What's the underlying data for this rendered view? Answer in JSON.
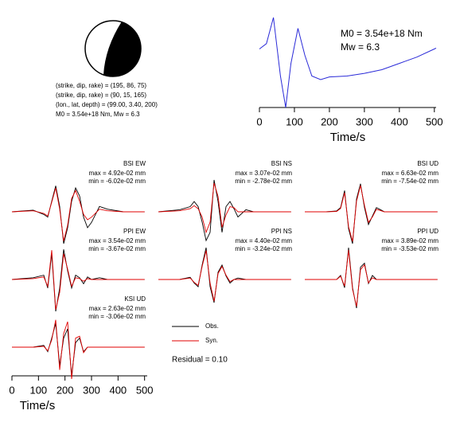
{
  "mechanism": {
    "lines": [
      "(strike, dip, rake) = (195, 86, 75)",
      "(strike, dip, rake) = (90, 15, 165)",
      "(lon., lat, depth) = (99.00, 3.40, 200)",
      "M0 = 3.54e+18 Nm, Mw = 6.3"
    ]
  },
  "chart_data": [
    {
      "type": "line",
      "annotations": [
        "M0 = 3.54e+18 Nm",
        "Mw = 6.3"
      ],
      "xlabel": "Time/s",
      "x": [
        0,
        20,
        40,
        60,
        75,
        90,
        110,
        130,
        150,
        175,
        200,
        250,
        300,
        350,
        400,
        450,
        500,
        505
      ],
      "values": [
        0.65,
        0.71,
        1.0,
        0.35,
        0,
        0.49,
        0.88,
        0.58,
        0.35,
        0.31,
        0.34,
        0.35,
        0.38,
        0.42,
        0.49,
        0.56,
        0.65,
        0.66
      ],
      "color": "#2a2ad8",
      "xlim": [
        0,
        505
      ],
      "xticks": [
        0,
        100,
        200,
        300,
        400,
        500
      ]
    },
    {
      "type": "waveform",
      "xlabel": "Time/s",
      "xlim": [
        0,
        510
      ],
      "xticks": [
        0,
        100,
        200,
        300,
        400,
        500
      ],
      "legend": [
        {
          "name": "Obs.",
          "color": "#000000"
        },
        {
          "name": "Syn.",
          "color": "#e00000"
        }
      ],
      "residual": "Residual = 0.10",
      "x": [
        0,
        80,
        120,
        135,
        150,
        165,
        180,
        195,
        210,
        225,
        240,
        255,
        270,
        285,
        300,
        330,
        360,
        420,
        500
      ],
      "panels": [
        {
          "name": "BSI EW",
          "max": "max = 4.92e-02 mm",
          "min": "min = -6.02e-02 mm",
          "obs": [
            0,
            0.003,
            -0.005,
            -0.01,
            0.02,
            0.049,
            0.01,
            -0.06,
            -0.03,
            0.02,
            0.045,
            0.03,
            -0.01,
            -0.03,
            -0.02,
            0.01,
            0.005,
            0,
            0
          ],
          "syn": [
            0,
            0.002,
            -0.003,
            -0.008,
            0.018,
            0.045,
            0.005,
            -0.055,
            -0.025,
            0.025,
            0.04,
            0.02,
            -0.005,
            -0.015,
            -0.01,
            0.005,
            0.002,
            0,
            0
          ]
        },
        {
          "name": "BSI NS",
          "max": "max = 3.07e-02 mm",
          "min": "min = -2.78e-02 mm",
          "obs": [
            0,
            0.002,
            0.005,
            0.01,
            0.005,
            -0.01,
            -0.028,
            -0.02,
            0.031,
            0.01,
            -0.02,
            0.005,
            0.01,
            0.003,
            -0.005,
            0.002,
            0,
            0,
            0
          ],
          "syn": [
            0,
            0.001,
            0.003,
            0.006,
            0.003,
            -0.005,
            -0.02,
            -0.01,
            0.028,
            0.015,
            -0.015,
            -0.003,
            0.005,
            0.004,
            0,
            0,
            0,
            0,
            0
          ]
        },
        {
          "name": "BSI UD",
          "max": "max = 6.63e-02 mm",
          "min": "min = -7.54e-02 mm",
          "obs": [
            0,
            0,
            0.002,
            0.01,
            0.05,
            -0.04,
            -0.075,
            0.03,
            0.066,
            0.01,
            -0.03,
            -0.01,
            0.01,
            0.005,
            0,
            0,
            0,
            0,
            0
          ],
          "syn": [
            0,
            0,
            0.001,
            0.008,
            0.045,
            -0.035,
            -0.07,
            0.025,
            0.062,
            0.015,
            -0.025,
            -0.012,
            0.006,
            0.003,
            0,
            0,
            0,
            0,
            0
          ]
        },
        {
          "name": "PPI EW",
          "max": "max = 3.54e-02 mm",
          "min": "min = -3.67e-02 mm",
          "obs": [
            0,
            0.002,
            0.005,
            -0.01,
            0.03,
            -0.037,
            -0.01,
            0.035,
            0.01,
            -0.01,
            0.005,
            0.002,
            -0.005,
            0.003,
            0,
            0.002,
            0,
            0,
            0
          ],
          "syn": [
            0,
            0.001,
            0.003,
            -0.008,
            0.034,
            -0.035,
            -0.015,
            0.03,
            0.012,
            -0.008,
            0.002,
            0.001,
            -0.002,
            0.001,
            0,
            0,
            0,
            0,
            0
          ]
        },
        {
          "name": "PPI NS",
          "max": "max = 4.40e-02 mm",
          "min": "min = -3.24e-02 mm",
          "obs": [
            0,
            0,
            0.003,
            -0.005,
            -0.01,
            0.02,
            0.044,
            -0.01,
            -0.032,
            0.01,
            0.02,
            0.005,
            -0.005,
            0,
            0.002,
            0,
            0,
            0,
            0
          ],
          "syn": [
            0,
            0,
            0.002,
            -0.004,
            -0.008,
            0.018,
            0.04,
            -0.005,
            -0.03,
            0.008,
            0.018,
            0.006,
            -0.003,
            0,
            0,
            0,
            0,
            0,
            0
          ]
        },
        {
          "name": "PPI UD",
          "max": "max = 3.89e-02 mm",
          "min": "min = -3.53e-02 mm",
          "obs": [
            0,
            0,
            0,
            0.005,
            -0.01,
            0.039,
            -0.01,
            -0.035,
            0.015,
            0.02,
            -0.005,
            0.005,
            0,
            0,
            0,
            0,
            0,
            0,
            0
          ],
          "syn": [
            0,
            0,
            0,
            0.004,
            -0.008,
            0.036,
            -0.012,
            -0.033,
            0.012,
            0.018,
            -0.004,
            0.002,
            0,
            0,
            0,
            0,
            0,
            0,
            0
          ]
        },
        {
          "name": "KSI UD",
          "max": "max = 2.63e-02 mm",
          "min": "min = -3.06e-02 mm",
          "obs": [
            0,
            0,
            0.002,
            -0.005,
            0.01,
            0.026,
            -0.02,
            0.01,
            0.02,
            -0.031,
            0.005,
            0.01,
            -0.005,
            0,
            0,
            0,
            0,
            0,
            0
          ],
          "syn": [
            0,
            0,
            0.001,
            -0.004,
            0.008,
            0.03,
            -0.025,
            0.015,
            0.028,
            -0.035,
            0.01,
            0.012,
            -0.006,
            0,
            0,
            0,
            0,
            0,
            0
          ]
        }
      ]
    }
  ]
}
